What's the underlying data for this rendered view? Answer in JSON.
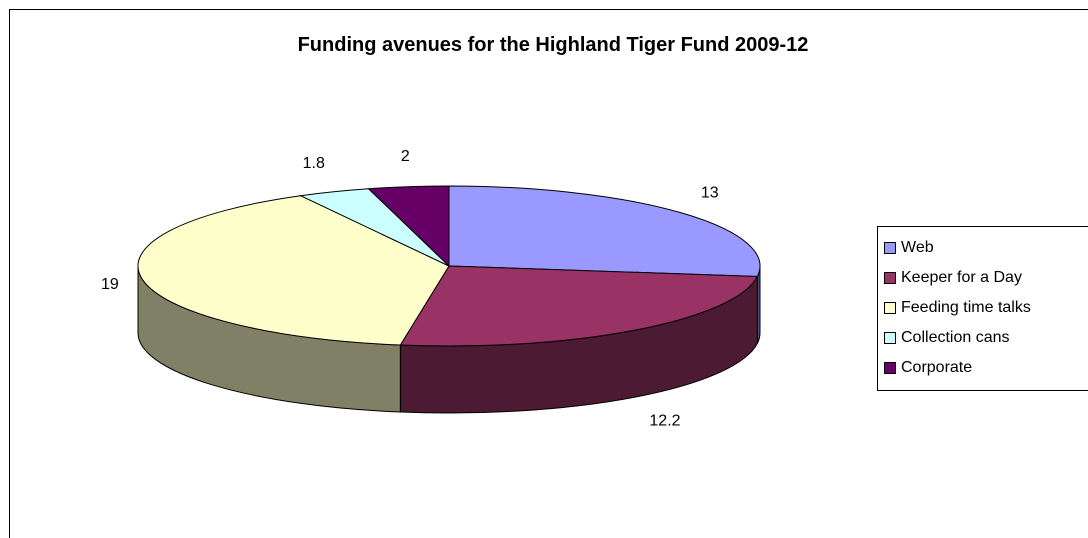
{
  "chart_data": {
    "type": "pie",
    "variant": "3d",
    "title": "Funding avenues for the Highland Tiger Fund 2009-12",
    "categories": [
      "Web",
      "Keeper for a Day",
      "Feeding time talks",
      "Collection cans",
      "Corporate"
    ],
    "values": [
      13,
      12.2,
      19,
      1.8,
      2
    ],
    "data_labels": [
      "13",
      "12.2",
      "19",
      "1.8",
      "2"
    ],
    "colors": [
      "#9999FF",
      "#993366",
      "#FFFFCC",
      "#CCFFFF",
      "#660066"
    ],
    "legend": {
      "position": "right",
      "items": [
        "Web",
        "Keeper for a Day",
        "Feeding time talks",
        "Collection cans",
        "Corporate"
      ]
    }
  }
}
